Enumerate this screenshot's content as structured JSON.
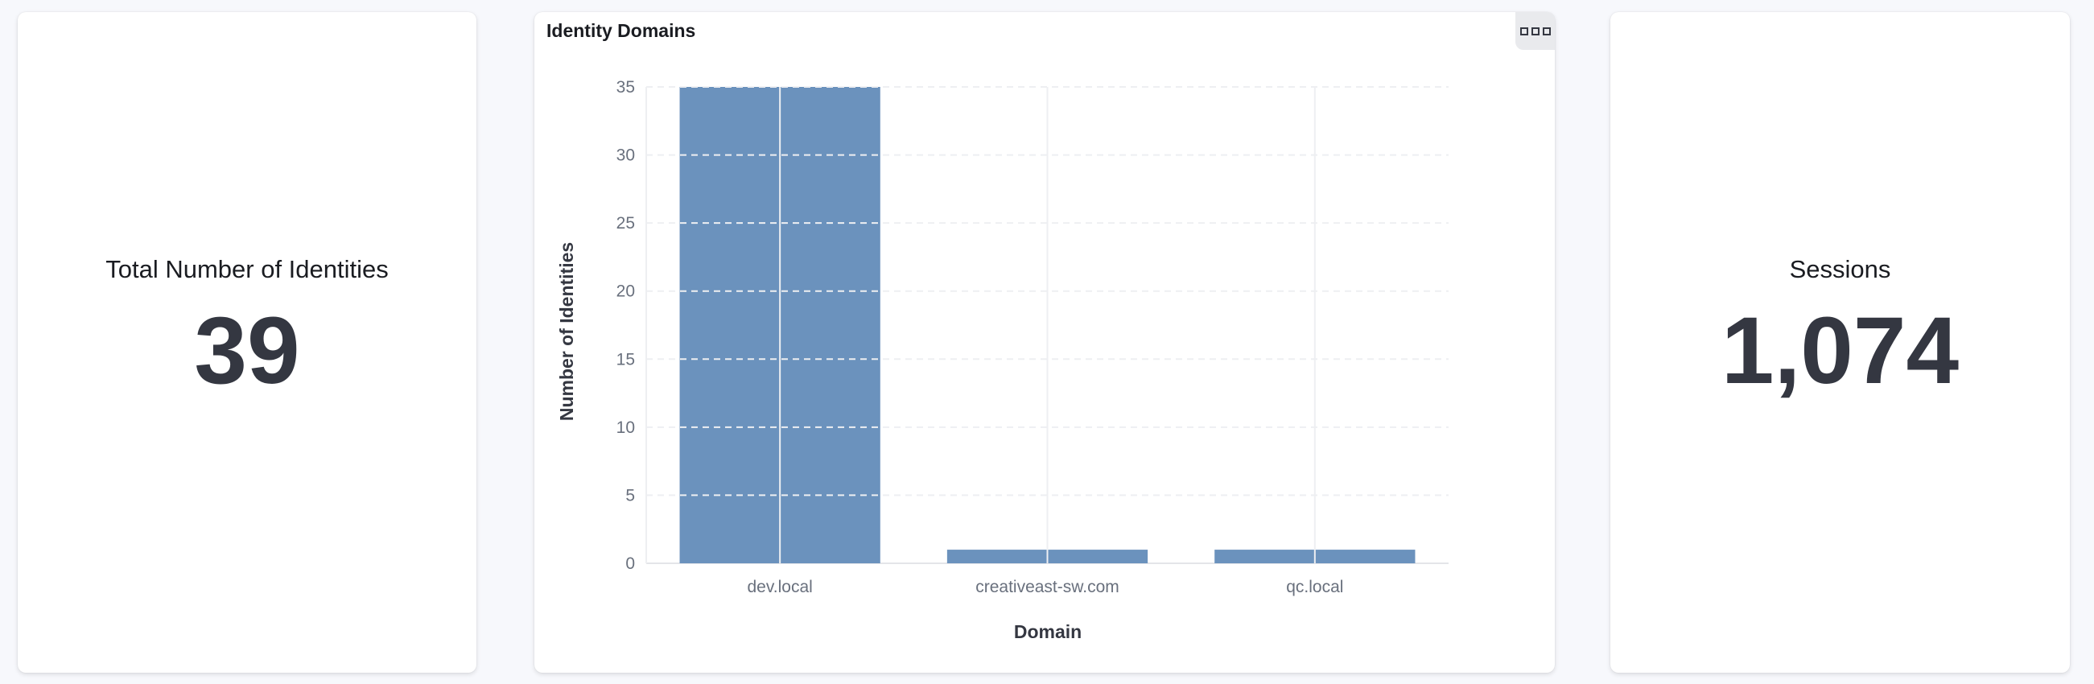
{
  "metrics": {
    "identities": {
      "label": "Total Number of Identities",
      "value": "39"
    },
    "sessions": {
      "label": "Sessions",
      "value": "1,074"
    }
  },
  "panel": {
    "title": "Identity Domains",
    "menu_icon": "options-icon"
  },
  "chart_data": {
    "type": "bar",
    "title": "Identity Domains",
    "xlabel": "Domain",
    "ylabel": "Number of Identities",
    "categories": [
      "dev.local",
      "creativeast-sw.com",
      "qc.local"
    ],
    "values": [
      35,
      1,
      1
    ],
    "ylim": [
      0,
      35
    ],
    "yticks": [
      0,
      5,
      10,
      15,
      20,
      25,
      30,
      35
    ],
    "grid": true,
    "bar_color": "#6b92bd"
  }
}
